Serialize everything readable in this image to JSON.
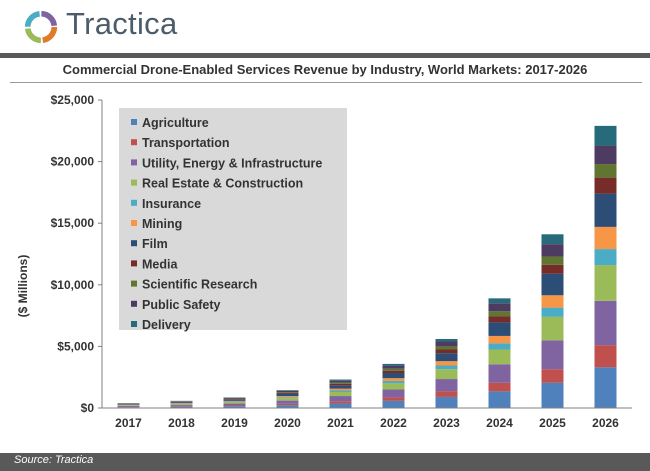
{
  "brand": {
    "name": "Tractica"
  },
  "source": "Source: Tractica",
  "colors": {
    "header_bar": "#595959",
    "legend_bg": "#d9d9d9"
  },
  "chart_data": {
    "type": "bar",
    "stacked": true,
    "title": "Commercial Drone-Enabled Services Revenue by Industry, World Markets: 2017-2026",
    "xlabel": "",
    "ylabel": "($ Millions)",
    "ylim": [
      0,
      25000
    ],
    "yticks": [
      0,
      5000,
      10000,
      15000,
      20000,
      25000
    ],
    "ytick_labels": [
      "$0",
      "$5,000",
      "$10,000",
      "$15,000",
      "$20,000",
      "$25,000"
    ],
    "legend_position": "top-left",
    "grid": false,
    "categories": [
      "2017",
      "2018",
      "2019",
      "2020",
      "2021",
      "2022",
      "2023",
      "2024",
      "2025",
      "2026"
    ],
    "series": [
      {
        "name": "Agriculture",
        "color": "#4f81bd",
        "values": [
          60,
          90,
          140,
          230,
          370,
          580,
          900,
          1350,
          2050,
          3300
        ]
      },
      {
        "name": "Transportation",
        "color": "#c0504d",
        "values": [
          25,
          40,
          60,
          110,
          180,
          280,
          450,
          700,
          1100,
          1800
        ]
      },
      {
        "name": "Utility, Energy & Infrastructure",
        "color": "#8064a2",
        "values": [
          80,
          110,
          160,
          260,
          420,
          640,
          1000,
          1500,
          2350,
          3600
        ]
      },
      {
        "name": "Real Estate & Construction",
        "color": "#9bbb59",
        "values": [
          60,
          80,
          120,
          200,
          330,
          500,
          800,
          1200,
          1900,
          2900
        ]
      },
      {
        "name": "Insurance",
        "color": "#4bacc6",
        "values": [
          20,
          30,
          45,
          75,
          120,
          190,
          300,
          500,
          750,
          1300
        ]
      },
      {
        "name": "Mining",
        "color": "#f79646",
        "values": [
          25,
          40,
          55,
          95,
          150,
          230,
          350,
          600,
          1000,
          1800
        ]
      },
      {
        "name": "Film",
        "color": "#2c4d75",
        "values": [
          50,
          70,
          100,
          170,
          270,
          420,
          650,
          1100,
          1750,
          2700
        ]
      },
      {
        "name": "Media",
        "color": "#772c2a",
        "values": [
          20,
          30,
          45,
          75,
          120,
          190,
          300,
          480,
          720,
          1300
        ]
      },
      {
        "name": "Scientific Research",
        "color": "#5f7530",
        "values": [
          15,
          25,
          40,
          65,
          100,
          160,
          250,
          420,
          680,
          1100
        ]
      },
      {
        "name": "Public Safety",
        "color": "#4d3b62",
        "values": [
          25,
          40,
          60,
          100,
          160,
          250,
          400,
          650,
          1000,
          1500
        ]
      },
      {
        "name": "Delivery",
        "color": "#276a7c",
        "values": [
          20,
          25,
          35,
          60,
          90,
          140,
          200,
          400,
          800,
          1600
        ]
      }
    ]
  }
}
